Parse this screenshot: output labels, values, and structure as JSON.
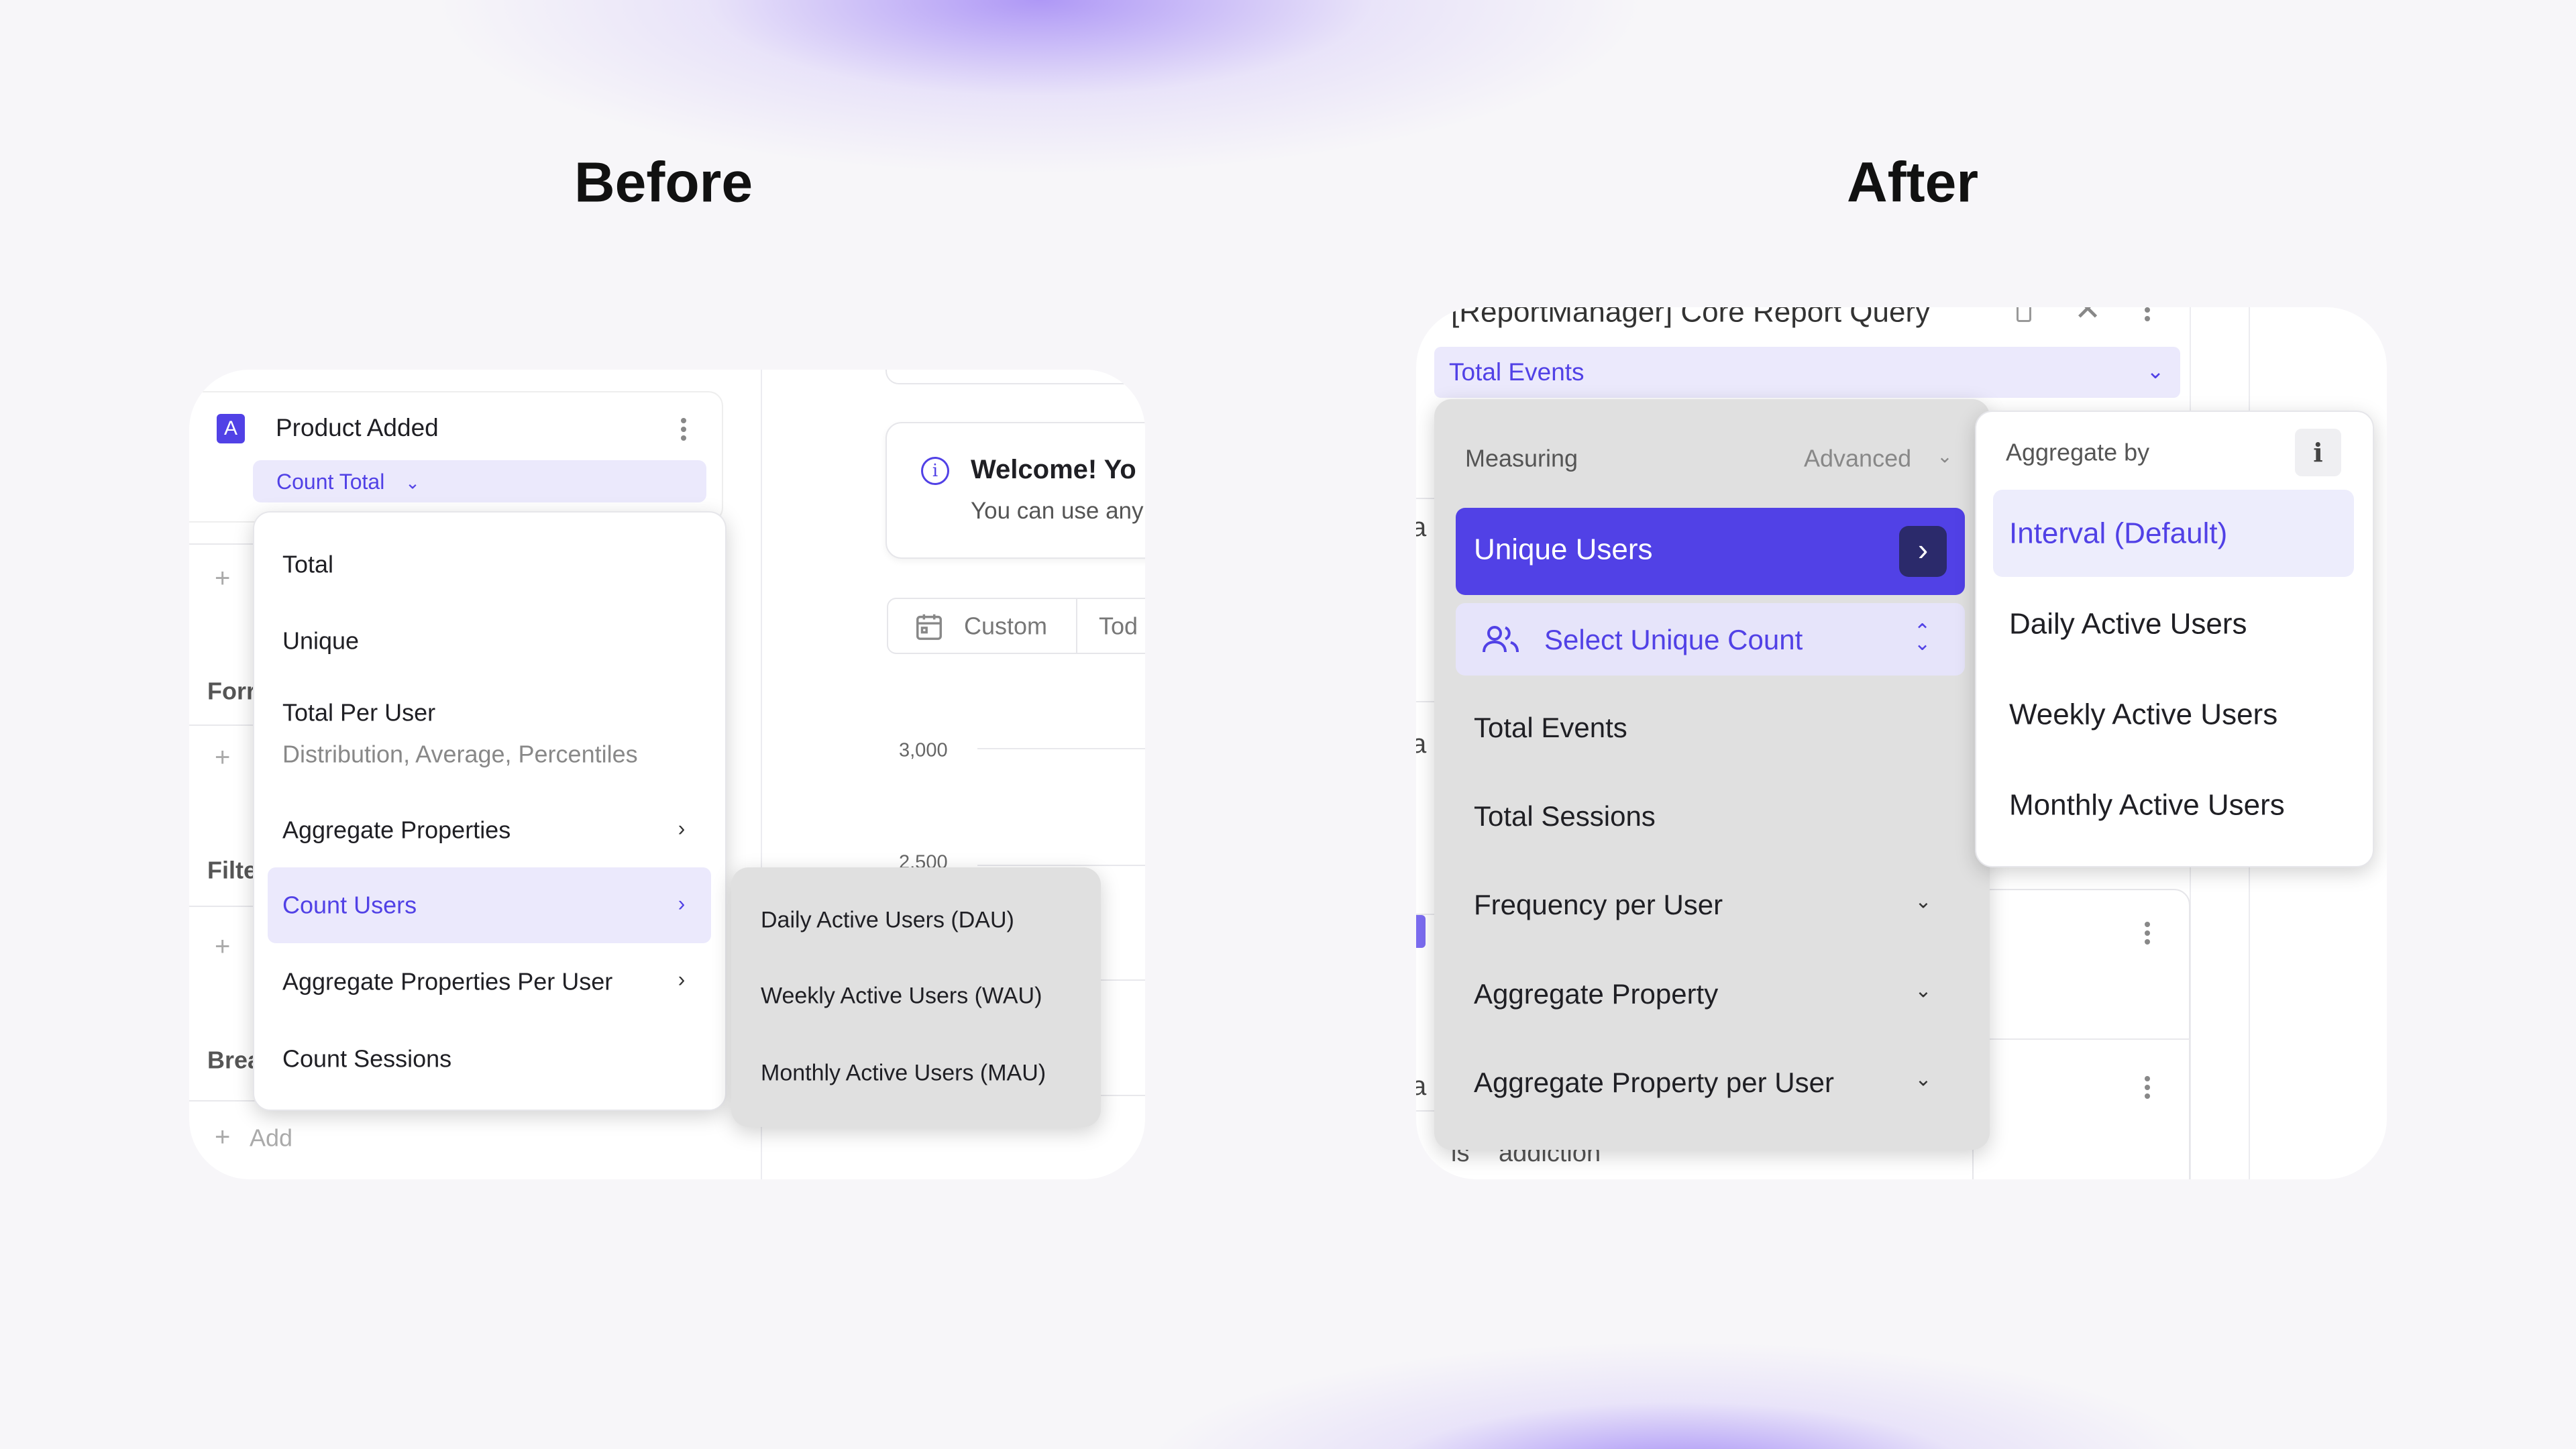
{
  "titles": {
    "before": "Before",
    "after": "After"
  },
  "before": {
    "card": {
      "badge": "A",
      "event_name": "Product Added",
      "measure": "Count Total"
    },
    "sidebar_bg": {
      "formula": "Forr",
      "filter": "Filte",
      "breakdown": "Brea",
      "add": "Add",
      "plus": "+"
    },
    "menu": {
      "items": [
        {
          "label": "Total"
        },
        {
          "label": "Unique"
        },
        {
          "label": "Total Per User",
          "sub": "Distribution, Average, Percentiles"
        },
        {
          "label": "Aggregate Properties",
          "has_submenu": true
        },
        {
          "label": "Count Users",
          "has_submenu": true,
          "selected": true
        },
        {
          "label": "Aggregate Properties Per User",
          "has_submenu": true
        },
        {
          "label": "Count Sessions"
        }
      ]
    },
    "submenu": {
      "items": [
        "Daily Active Users (DAU)",
        "Weekly Active Users (WAU)",
        "Monthly Active Users (MAU)"
      ]
    },
    "welcome": {
      "title": "Welcome! Yo",
      "body": "You can use any"
    },
    "date": {
      "custom": "Custom",
      "today": "Tod"
    },
    "chart": {
      "ticks": [
        "3,000",
        "2,500"
      ]
    }
  },
  "after": {
    "query_title": "[ReportManager] Core Report Query",
    "measure_pill": "Total Events",
    "menu": {
      "header": "Measuring",
      "advanced": "Advanced",
      "selected": "Unique Users",
      "select_unique": "Select Unique Count",
      "items": [
        {
          "label": "Total Events"
        },
        {
          "label": "Total Sessions"
        },
        {
          "label": "Frequency per User",
          "expand": true
        },
        {
          "label": "Aggregate Property",
          "expand": true
        },
        {
          "label": "Aggregate Property per User",
          "expand": true
        }
      ]
    },
    "aggregate": {
      "header": "Aggregate by",
      "info": "i",
      "items": [
        "Interval (Default)",
        "Daily Active Users",
        "Weekly Active Users",
        "Monthly Active Users"
      ]
    },
    "bg": {
      "a": "a",
      "is": "is",
      "value": "addiction"
    }
  },
  "colors": {
    "accent": "#5141e6",
    "accent_light": "#ebe9fc",
    "menu_gray": "#e0e0e0",
    "dark_button": "#2b2a6b"
  }
}
